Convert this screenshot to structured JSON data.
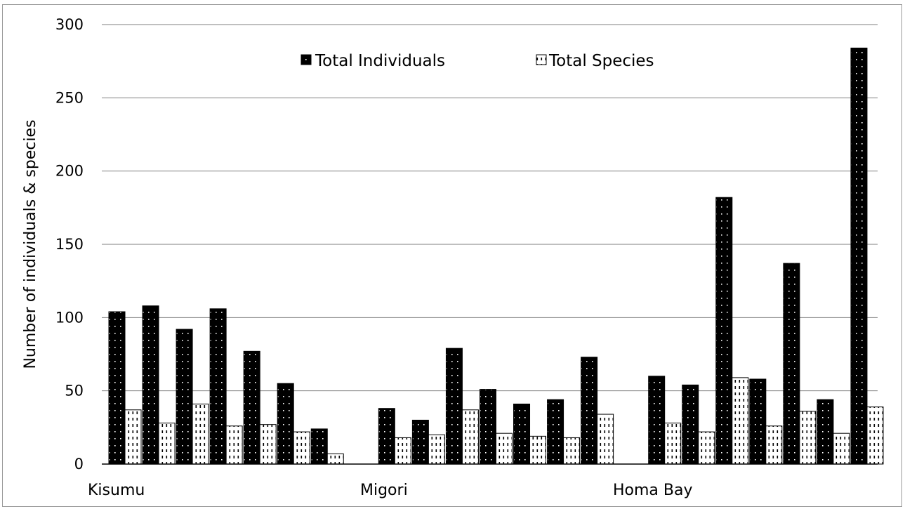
{
  "chart_data": {
    "type": "bar",
    "ylabel": "Number of individuals & species",
    "ylim": [
      0,
      300
    ],
    "yticks": [
      0,
      50,
      100,
      150,
      200,
      250,
      300
    ],
    "grid": true,
    "legend_position": "top",
    "groups": [
      "Kisumu",
      "Migori",
      "Homa Bay"
    ],
    "series": [
      {
        "name": "Total Individuals",
        "pattern": "black-dotted",
        "values": [
          104,
          108,
          92,
          106,
          77,
          55,
          24,
          null,
          38,
          30,
          79,
          51,
          41,
          44,
          73,
          null,
          60,
          54,
          182,
          58,
          137,
          44,
          284
        ]
      },
      {
        "name": "Total Species",
        "pattern": "white-dashed",
        "values": [
          37,
          28,
          41,
          26,
          27,
          22,
          7,
          null,
          18,
          20,
          37,
          21,
          19,
          18,
          34,
          null,
          28,
          22,
          59,
          26,
          36,
          21,
          39
        ]
      }
    ]
  }
}
